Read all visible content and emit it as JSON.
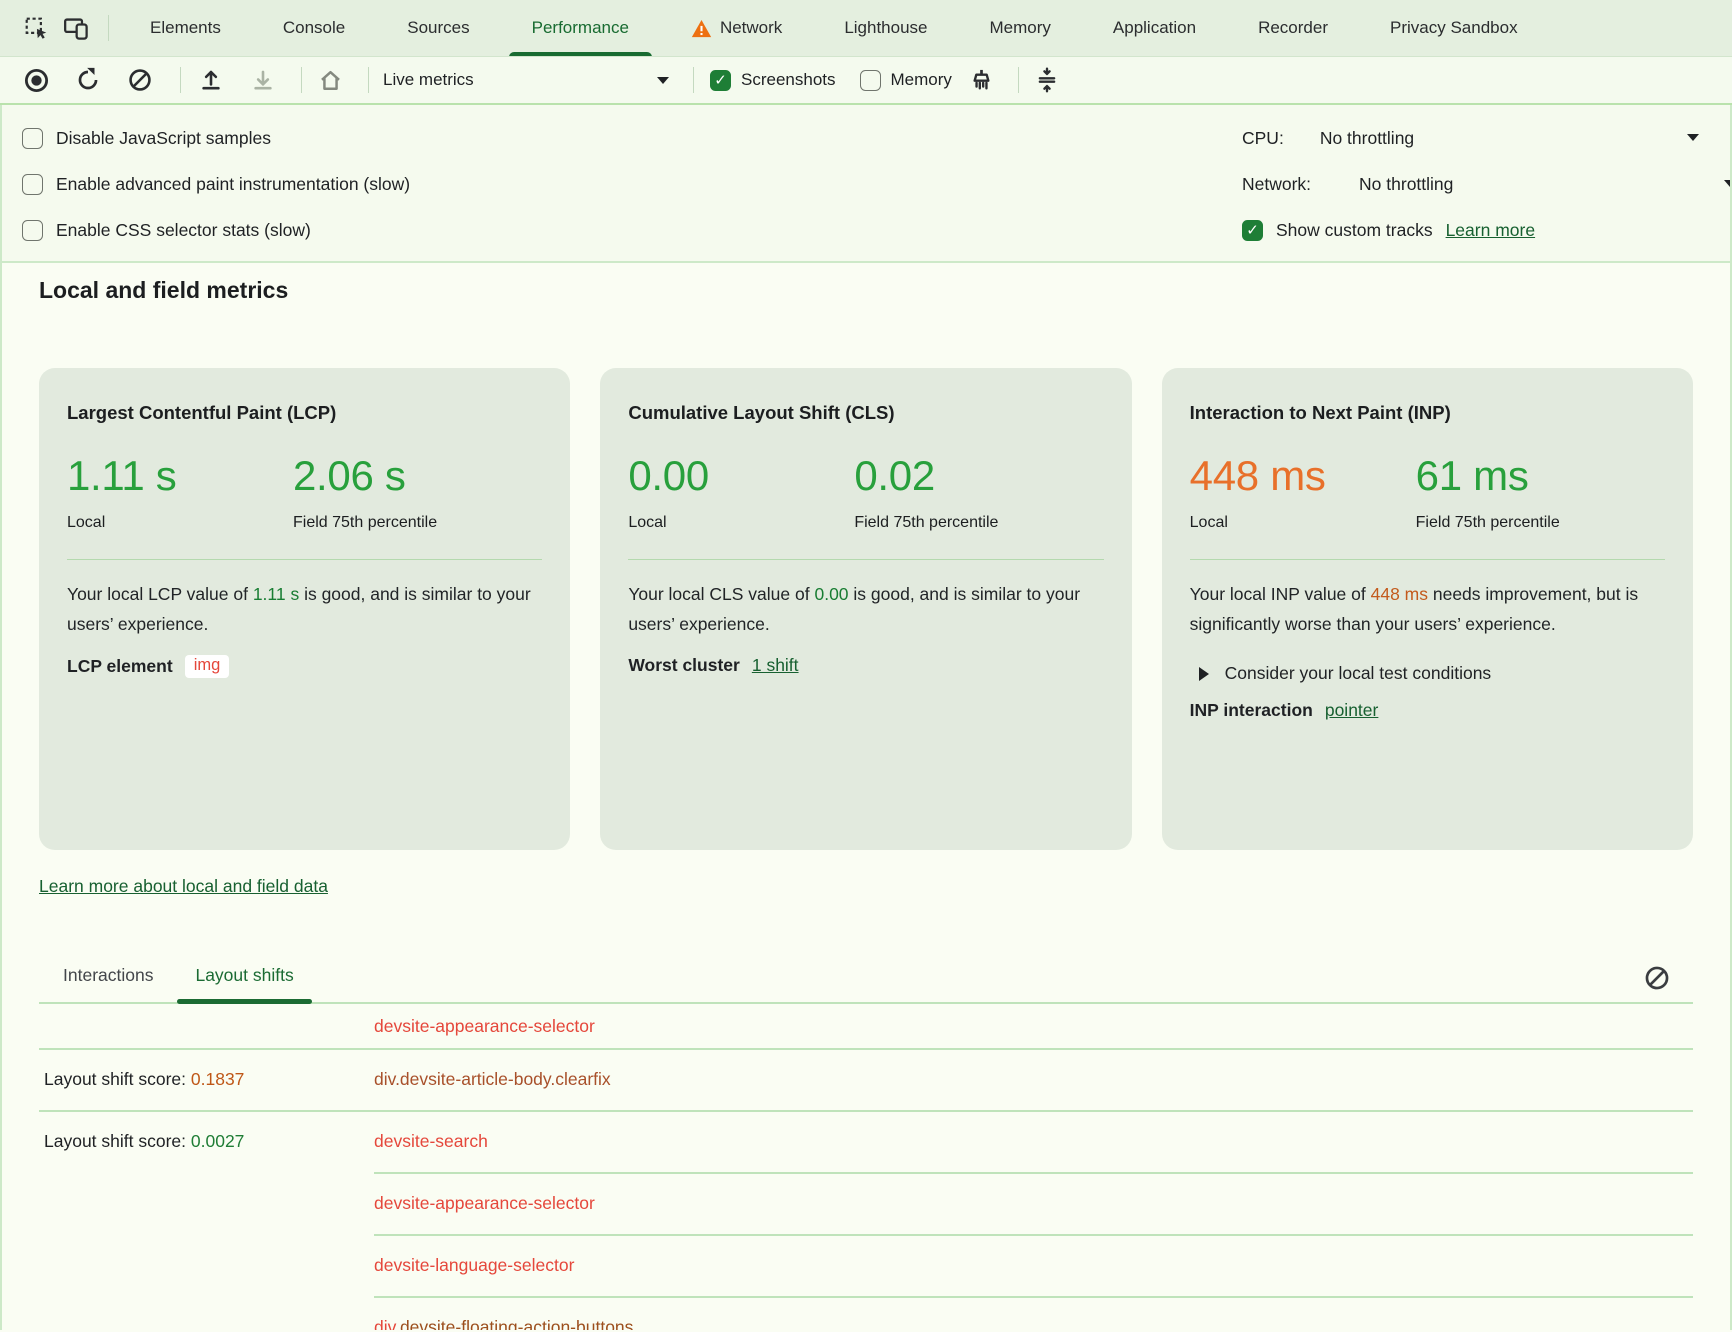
{
  "colors": {
    "accent_green": "#186b31",
    "good_green": "#28a03c",
    "needs_improvement_orange": "#e8702a",
    "inline_good_green": "#187d32",
    "inline_orange": "#c35a1c",
    "link_green": "#176030",
    "node_link_red": "#e5473b",
    "node_link_brown": "#a8502a",
    "node_link_dark_brown": "#9c4f1d",
    "score_orange": "#bf5717",
    "score_green": "#1f7d35"
  },
  "icons": {
    "inspect": "inspect-cursor-icon",
    "device": "device-toolbar-icon",
    "record": "record-icon",
    "reload": "reload-icon",
    "clear": "clear-icon",
    "upload": "upload-profile-icon",
    "download": "download-profile-icon",
    "home": "home-icon",
    "warning": "warning-triangle-icon",
    "gc": "garbage-collect-brush-icon",
    "collapse": "collapse-live-metrics-icon",
    "clear_log": "clear-log-icon"
  },
  "tabbar": {
    "tabs": [
      {
        "label": "Elements"
      },
      {
        "label": "Console"
      },
      {
        "label": "Sources"
      },
      {
        "label": "Performance",
        "selected": true
      },
      {
        "label": "Network",
        "warning": true
      },
      {
        "label": "Lighthouse"
      },
      {
        "label": "Memory"
      },
      {
        "label": "Application"
      },
      {
        "label": "Recorder"
      },
      {
        "label": "Privacy Sandbox"
      }
    ]
  },
  "toolbar": {
    "live_metrics_label": "Live metrics",
    "screenshots": {
      "label": "Screenshots",
      "checked": true
    },
    "memory": {
      "label": "Memory",
      "checked": false
    }
  },
  "options": {
    "items": [
      {
        "label": "Disable JavaScript samples",
        "checked": false
      },
      {
        "label": "Enable advanced paint instrumentation (slow)",
        "checked": false
      },
      {
        "label": "Enable CSS selector stats (slow)",
        "checked": false
      }
    ],
    "cpu": {
      "label": "CPU:",
      "value": "No throttling"
    },
    "network": {
      "label": "Network:",
      "value": "No throttling"
    },
    "custom_tracks": {
      "label": "Show custom tracks",
      "checked": true,
      "learn_more": "Learn more"
    }
  },
  "metrics": {
    "heading": "Local and field metrics",
    "cards": [
      {
        "title": "Largest Contentful Paint (LCP)",
        "local": {
          "value": "1.11 s",
          "color": "#28a03c",
          "label": "Local"
        },
        "field": {
          "value": "2.06 s",
          "color": "#28a03c",
          "label": "Field 75th percentile"
        },
        "desc": {
          "prefix": "Your local LCP value of ",
          "value": "1.11 s",
          "value_color": "#187d32",
          "suffix": " is good, and is similar to your users’ experience."
        },
        "footer": {
          "label": "LCP element",
          "badge": "img"
        }
      },
      {
        "title": "Cumulative Layout Shift (CLS)",
        "local": {
          "value": "0.00",
          "color": "#28a03c",
          "label": "Local"
        },
        "field": {
          "value": "0.02",
          "color": "#28a03c",
          "label": "Field 75th percentile"
        },
        "desc": {
          "prefix": "Your local CLS value of ",
          "value": "0.00",
          "value_color": "#187d32",
          "suffix": " is good, and is similar to your users’ experience."
        },
        "footer": {
          "label": "Worst cluster",
          "link": "1 shift"
        }
      },
      {
        "title": "Interaction to Next Paint (INP)",
        "local": {
          "value": "448 ms",
          "color": "#e8702a",
          "label": "Local"
        },
        "field": {
          "value": "61 ms",
          "color": "#28a03c",
          "label": "Field 75th percentile"
        },
        "desc": {
          "prefix": "Your local INP value of ",
          "value": "448 ms",
          "value_color": "#c35a1c",
          "suffix": " needs improvement, but is significantly worse than your users’ experience."
        },
        "expander_label": "Consider your local test conditions",
        "footer": {
          "label": "INP interaction",
          "link": "pointer"
        }
      }
    ],
    "learn_more_link": "Learn more about local and field data"
  },
  "log": {
    "tabs": [
      {
        "label": "Interactions",
        "selected": false
      },
      {
        "label": "Layout shifts",
        "selected": true
      }
    ],
    "score_label": "Layout shift score: ",
    "rows": [
      {
        "partial": true,
        "sep": "none",
        "element_parts": [
          {
            "text": "devsite-appearance-selector",
            "color": "#e5473b"
          }
        ]
      },
      {
        "sep": "full",
        "score": "0.1837",
        "score_color": "#bf5717",
        "element_parts": [
          {
            "text": "div.devsite-article-body.clearfix",
            "color": "#a8502a"
          }
        ]
      },
      {
        "sep": "full",
        "score": "0.0027",
        "score_color": "#1f7d35",
        "element_parts": [
          {
            "text": "devsite-search",
            "color": "#e5473b"
          }
        ]
      },
      {
        "sep": "right",
        "element_parts": [
          {
            "text": "devsite-appearance-selector",
            "color": "#e5473b"
          }
        ]
      },
      {
        "sep": "right",
        "element_parts": [
          {
            "text": "devsite-language-selector",
            "color": "#e5473b"
          }
        ]
      },
      {
        "sep": "right",
        "element_parts": [
          {
            "text": "div",
            "color": "#e5473b"
          },
          {
            "text": ".devsite-floating-action-buttons",
            "color": "#9c4f1d"
          }
        ]
      }
    ]
  }
}
